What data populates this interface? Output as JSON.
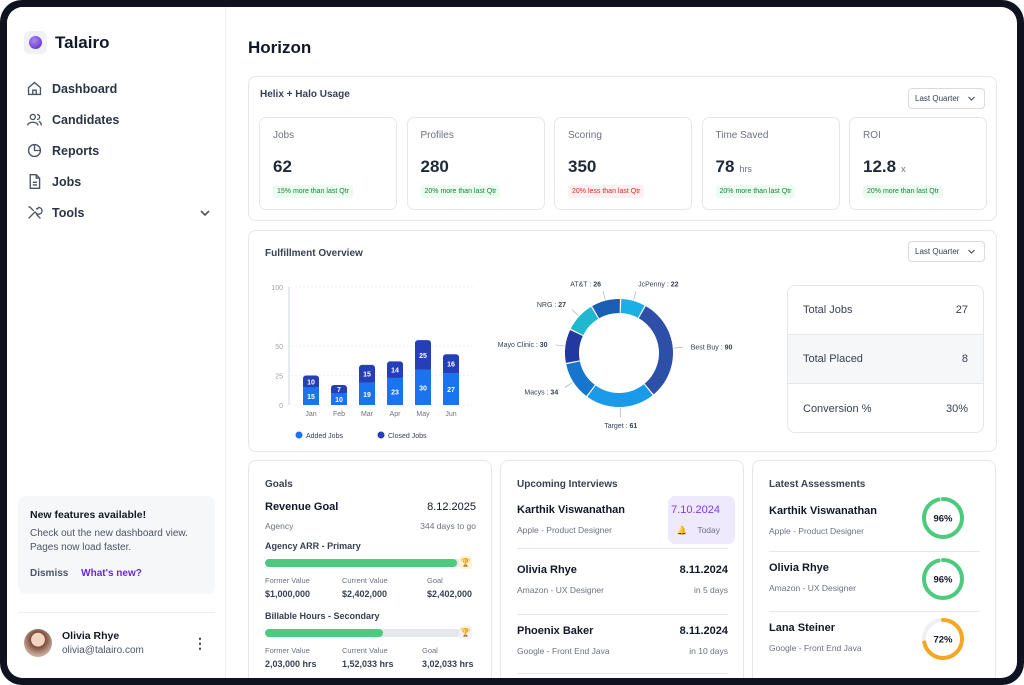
{
  "brand": {
    "name": "Talairo"
  },
  "nav": [
    {
      "label": "Dashboard",
      "icon": "home-icon"
    },
    {
      "label": "Candidates",
      "icon": "users-icon"
    },
    {
      "label": "Reports",
      "icon": "pie-chart-icon"
    },
    {
      "label": "Jobs",
      "icon": "file-icon"
    },
    {
      "label": "Tools",
      "icon": "tools-icon"
    }
  ],
  "promo": {
    "title": "New features available!",
    "text": "Check out the new dashboard view. Pages now load faster.",
    "dismiss": "Dismiss",
    "whats_new": "What's new?"
  },
  "user": {
    "name": "Olivia Rhye",
    "email": "olivia@talairo.com"
  },
  "page": {
    "title": "Horizon"
  },
  "usage": {
    "title": "Helix + Halo Usage",
    "period": "Last Quarter",
    "stats": [
      {
        "label": "Jobs",
        "value": "62",
        "unit": "",
        "badge": "15% more than last Qtr",
        "trend": "up"
      },
      {
        "label": "Profiles",
        "value": "280",
        "unit": "",
        "badge": "20% more than last Qtr",
        "trend": "up"
      },
      {
        "label": "Scoring",
        "value": "350",
        "unit": "",
        "badge": "20% less than last Qtr",
        "trend": "down"
      },
      {
        "label": "Time Saved",
        "value": "78",
        "unit": "hrs",
        "badge": "20% more than last Qtr",
        "trend": "up"
      },
      {
        "label": "ROI",
        "value": "12.8",
        "unit": "x",
        "badge": "20% more than last Qtr",
        "trend": "up"
      }
    ]
  },
  "fulfillment": {
    "title": "Fulfillment Overview",
    "period": "Last Quarter",
    "summary": [
      {
        "label": "Total Jobs",
        "value": "27"
      },
      {
        "label": "Total Placed",
        "value": "8"
      },
      {
        "label": "Conversion %",
        "value": "30%"
      }
    ]
  },
  "chart_data": [
    {
      "type": "bar",
      "stacked": true,
      "categories": [
        "Jan",
        "Feb",
        "Mar",
        "Apr",
        "May",
        "Jun"
      ],
      "series": [
        {
          "name": "Added Jobs",
          "values": [
            15,
            10,
            19,
            23,
            30,
            27
          ],
          "color": "#1a73f0"
        },
        {
          "name": "Closed Jobs",
          "values": [
            10,
            7,
            15,
            14,
            25,
            16
          ],
          "color": "#253fb8"
        }
      ],
      "yticks": [
        0,
        25,
        50,
        100
      ],
      "ylim": [
        0,
        100
      ],
      "legend": "bottom",
      "grid": true
    },
    {
      "type": "pie",
      "donut": true,
      "slices": [
        {
          "label": "JcPenny",
          "value": 22,
          "color": "#1ab0e5"
        },
        {
          "label": "Best Buy",
          "value": 90,
          "color": "#2d4fa8"
        },
        {
          "label": "Target",
          "value": 61,
          "color": "#1a9ae8"
        },
        {
          "label": "Macys",
          "value": 34,
          "color": "#1675cc"
        },
        {
          "label": "Mayo Clinic",
          "value": 30,
          "color": "#2338a0"
        },
        {
          "label": "NRG",
          "value": 27,
          "color": "#1fb8d0"
        },
        {
          "label": "AT&T",
          "value": 26,
          "color": "#1a5fb4"
        }
      ]
    }
  ],
  "goals": {
    "title": "Goals",
    "revenue_title": "Revenue Goal",
    "revenue_date": "8.12.2025",
    "agency": "Agency",
    "days_to_go": "344 days to go",
    "items": [
      {
        "name": "Agency ARR - Primary",
        "progress": 0.98,
        "labels": [
          "Former Value",
          "Current Value",
          "Goal"
        ],
        "values": [
          "$1,000,000",
          "$2,402,000",
          "$2,402,000"
        ],
        "achieved": true
      },
      {
        "name": "Billable Hours - Secondary",
        "progress": 0.6,
        "labels": [
          "Former Value",
          "Current Value",
          "Goal"
        ],
        "values": [
          "2,03,000 hrs",
          "1,52,033 hrs",
          "3,02,033 hrs"
        ],
        "achieved": false
      }
    ]
  },
  "interviews": {
    "title": "Upcoming Interviews",
    "items": [
      {
        "name": "Karthik Viswanathan",
        "role": "Apple - Product Designer",
        "date": "7.10.2024",
        "when": "Today",
        "highlight": true
      },
      {
        "name": "Olivia Rhye",
        "role": "Amazon - UX Designer",
        "date": "8.11.2024",
        "when": "in 5 days",
        "highlight": false
      },
      {
        "name": "Phoenix Baker",
        "role": "Google - Front End Java",
        "date": "8.11.2024",
        "when": "in 10 days",
        "highlight": false
      }
    ]
  },
  "assessments": {
    "title": "Latest Assessments",
    "items": [
      {
        "name": "Karthik Viswanathan",
        "role": "Apple - Product Designer",
        "score": "96%",
        "value": 96,
        "color": "#4ccb7f"
      },
      {
        "name": "Olivia Rhye",
        "role": "Amazon - UX Designer",
        "score": "96%",
        "value": 96,
        "color": "#4ccb7f"
      },
      {
        "name": "Lana Steiner",
        "role": "Google - Front End Java",
        "score": "72%",
        "value": 72,
        "color": "#f5a623"
      }
    ]
  }
}
